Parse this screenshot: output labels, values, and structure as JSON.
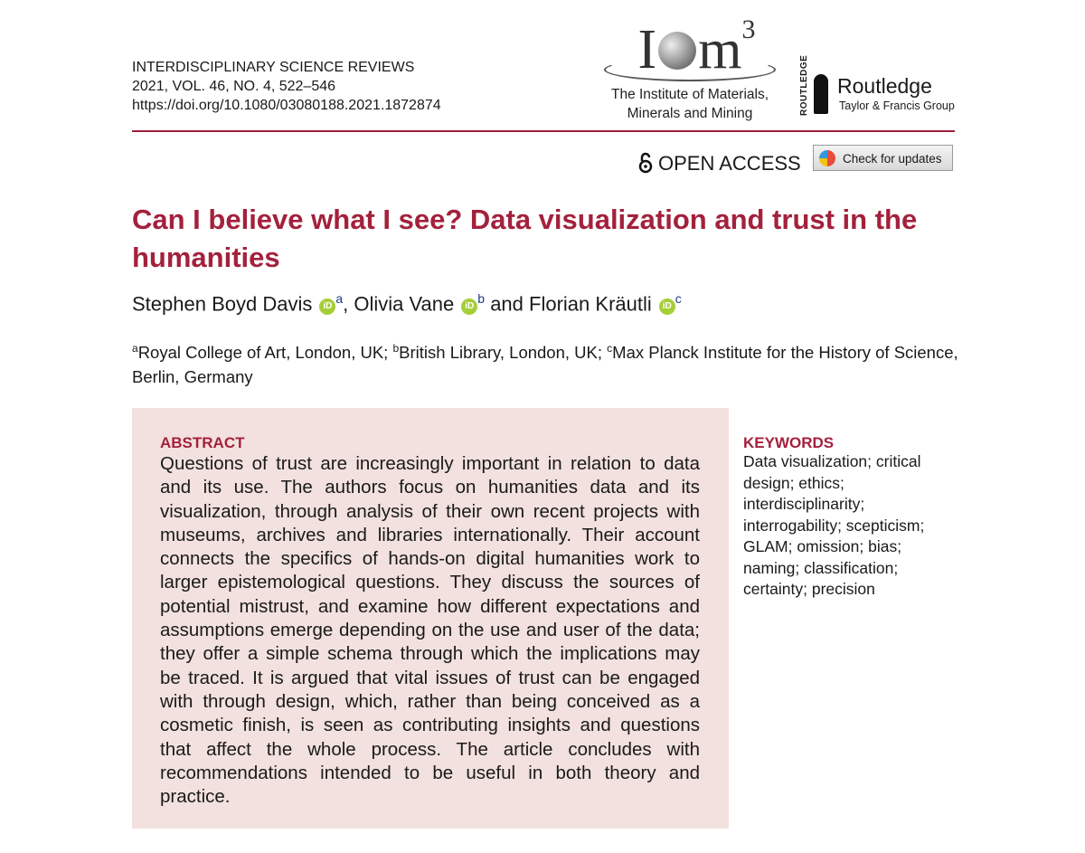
{
  "header": {
    "journal": "INTERDISCIPLINARY SCIENCE REVIEWS",
    "issue": "2021, VOL. 46, NO. 4, 522–546",
    "doi": "https://doi.org/10.1080/03080188.2021.1872874"
  },
  "logos": {
    "iom3": {
      "left": "I",
      "right": "m",
      "superscript": "3",
      "name_lines": [
        "The Institute of Materials,",
        "Minerals and Mining"
      ]
    },
    "routledge": {
      "vertical": "ROUTLEDGE",
      "name": "Routledge",
      "group": "Taylor & Francis Group"
    }
  },
  "open_access": "OPEN ACCESS",
  "check_updates": "Check for updates",
  "title": "Can I believe what I see? Data visualization and trust in the humanities",
  "authors": [
    {
      "name": "Stephen Boyd Davis",
      "orcid": "iD",
      "affiliation": "a",
      "separator": ","
    },
    {
      "name": "Olivia Vane",
      "orcid": "iD",
      "affiliation": "b",
      "separator": "and"
    },
    {
      "name": "Florian Kräutli",
      "orcid": "iD",
      "affiliation": "c"
    }
  ],
  "affiliations": [
    {
      "letter": "a",
      "text": "Royal College of Art, London, UK;"
    },
    {
      "letter": "b",
      "text": "British Library, London, UK;"
    },
    {
      "letter": "c",
      "text": "Max Planck Institute for the History of Science, Berlin, Germany"
    }
  ],
  "abstract": {
    "heading": "ABSTRACT",
    "text": "Questions of trust are increasingly important in relation to data and its use. The authors focus on humanities data and its visualization, through analysis of their own recent projects with museums, archives and libraries internationally. Their account connects the specifics of hands-on digital humanities work to larger epistemological questions. They discuss the sources of potential mistrust, and examine how different expectations and assumptions emerge depending on the use and user of the data; they offer a simple schema through which the implications may be traced. It is argued that vital issues of trust can be engaged with through design, which, rather than being conceived as a cosmetic finish, is seen as contributing insights and questions that affect the whole process. The article concludes with recommendations intended to be useful in both theory and practice."
  },
  "keywords": {
    "heading": "KEYWORDS",
    "text": "Data visualization; critical design; ethics; interdisciplinarity; interrogability; scepticism; GLAM; omission; bias; naming; classification; certainty; precision"
  }
}
